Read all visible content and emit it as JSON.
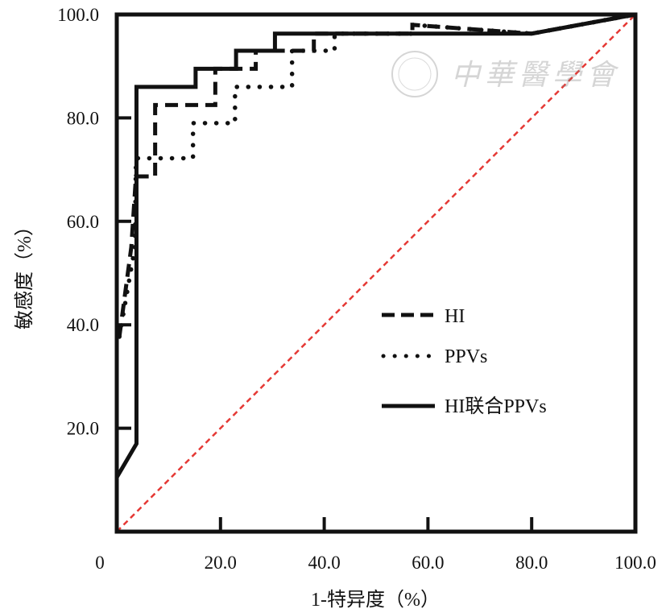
{
  "chart_data": {
    "type": "line",
    "title": "",
    "xlabel": "1-特异度（%）",
    "ylabel": "敏感度（%）",
    "xlim": [
      0,
      100
    ],
    "ylim": [
      0,
      100
    ],
    "x_ticks": [
      "0",
      "20.0",
      "40.0",
      "60.0",
      "80.0",
      "100.0"
    ],
    "y_ticks": [
      "20.0",
      "40.0",
      "60.0",
      "80.0",
      "100.0"
    ],
    "x_tick_values": [
      0,
      20,
      40,
      60,
      80,
      100
    ],
    "y_tick_values": [
      20,
      40,
      60,
      80,
      100
    ],
    "grid": false,
    "legend_position": "center-right",
    "series": [
      {
        "name": "HI",
        "style": "dashed",
        "color": "#111111",
        "x": [
          0.5,
          2.8,
          3.7,
          7.4,
          7.4,
          19,
          19,
          26.8,
          26.8,
          38,
          38,
          57,
          57,
          80,
          100
        ],
        "y": [
          37.7,
          55,
          68.7,
          68.7,
          82.5,
          82.5,
          89.5,
          89.5,
          93,
          93,
          96.3,
          96.3,
          98,
          96.3,
          100
        ]
      },
      {
        "name": "PPVs",
        "style": "dotted",
        "color": "#111111",
        "x": [
          0.5,
          3.5,
          3.7,
          5.7,
          14.7,
          14.7,
          16.7,
          22.8,
          22.8,
          33.8,
          33.8,
          35,
          42,
          42,
          57,
          57,
          80,
          100
        ],
        "y": [
          37.7,
          55,
          72.2,
          72.2,
          72.2,
          79,
          79,
          79,
          86,
          86,
          93,
          93,
          93,
          96.3,
          96.3,
          98,
          96.3,
          100
        ]
      },
      {
        "name": "HI联合PPVs",
        "style": "solid",
        "color": "#111111",
        "x": [
          0,
          3.8,
          3.8,
          15.2,
          15.2,
          23,
          23,
          30.5,
          30.5,
          80,
          100
        ],
        "y": [
          10.5,
          17,
          86,
          86,
          89.5,
          89.5,
          93,
          93,
          96.3,
          96.3,
          100
        ]
      }
    ],
    "reference_line": {
      "x": [
        0,
        100
      ],
      "y": [
        0,
        100
      ],
      "color": "#e53935",
      "style": "dashed"
    }
  },
  "watermark": {
    "text": "中華醫學會"
  }
}
